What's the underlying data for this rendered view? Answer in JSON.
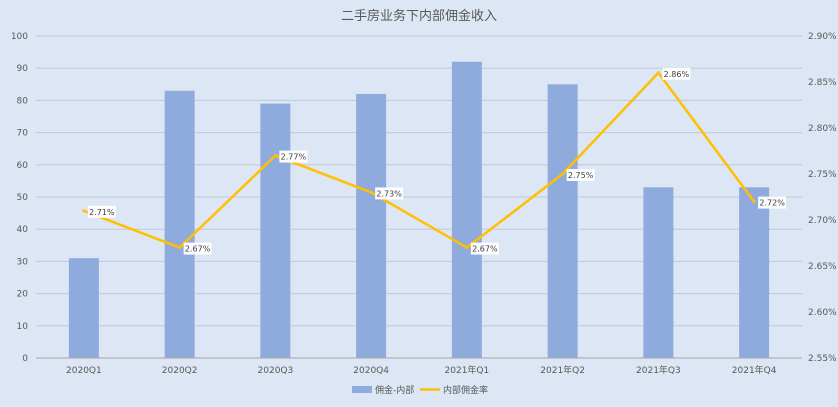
{
  "chart_data": {
    "type": "bar",
    "title": "二手房业务下内部佣金收入",
    "categories": [
      "2020Q1",
      "2020Q2",
      "2020Q3",
      "2020Q4",
      "2021年Q1",
      "2021年Q2",
      "2021年Q3",
      "2021年Q4"
    ],
    "series": [
      {
        "name": "佣金-内部",
        "type": "bar",
        "axis": "left",
        "color": "#8faadc",
        "values": [
          31,
          83,
          79,
          82,
          92,
          85,
          53,
          53
        ]
      },
      {
        "name": "内部佣金率",
        "type": "line",
        "axis": "right",
        "color": "#ffc000",
        "values": [
          2.71,
          2.67,
          2.77,
          2.73,
          2.67,
          2.75,
          2.86,
          2.72
        ],
        "data_labels": [
          "2.71%",
          "2.67%",
          "2.77%",
          "2.73%",
          "2.67%",
          "2.75%",
          "2.86%",
          "2.72%"
        ]
      }
    ],
    "ylim": [
      0,
      100
    ],
    "y_ticks": [
      0,
      10,
      20,
      30,
      40,
      50,
      60,
      70,
      80,
      90,
      100
    ],
    "y2lim": [
      2.55,
      2.9
    ],
    "y2_ticks": [
      "2.55%",
      "2.60%",
      "2.65%",
      "2.70%",
      "2.75%",
      "2.80%",
      "2.85%",
      "2.90%"
    ],
    "grid": true,
    "legend_position": "bottom"
  }
}
